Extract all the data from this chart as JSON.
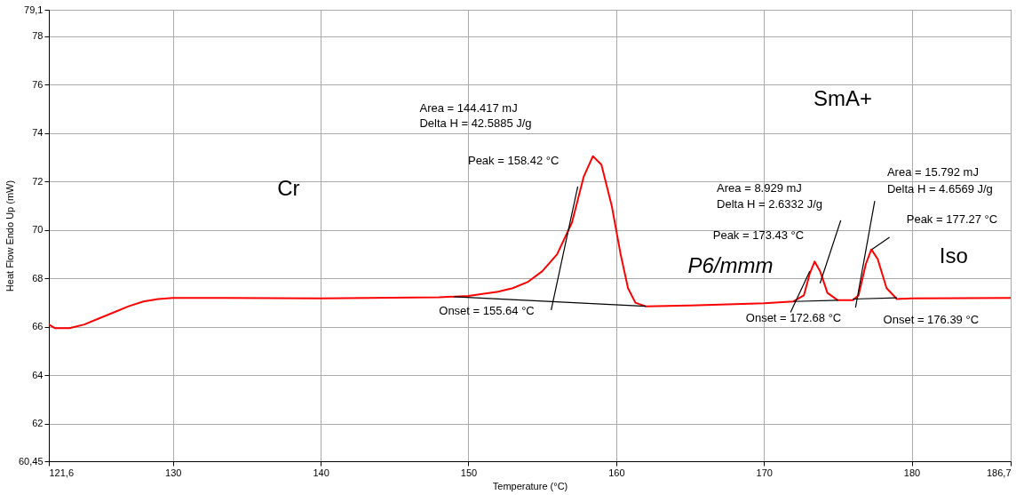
{
  "chart_data": {
    "type": "line",
    "xlabel": "Temperature (°C)",
    "ylabel": "Heat Flow Endo Up (mW)",
    "xlim": [
      121.6,
      186.7
    ],
    "xticks": [
      {
        "value": 121.6,
        "label": "121,6"
      },
      130,
      140,
      150,
      160,
      170,
      180,
      {
        "value": 186.7,
        "label": "186,7"
      }
    ],
    "ylim": [
      60.45,
      79.1
    ],
    "yticks": [
      {
        "value": 60.45,
        "label": "60,45"
      },
      62,
      64,
      66,
      68,
      70,
      72,
      74,
      76,
      78,
      {
        "value": 79.1,
        "label": "79,1"
      }
    ],
    "grid": true,
    "marker": "none",
    "line_style": "solid",
    "series": [
      {
        "color": "#ff0000",
        "x": [
          121.6,
          122,
          123,
          124,
          125,
          126,
          127,
          128,
          129,
          130,
          140,
          148,
          150,
          152,
          153,
          154,
          155,
          156,
          157,
          157.8,
          158.42,
          159,
          159.7,
          160.3,
          160.8,
          161.3,
          162,
          165,
          170,
          172,
          172.7,
          173.1,
          173.43,
          173.8,
          174.3,
          175,
          176,
          176.4,
          176.9,
          177.27,
          177.7,
          178.3,
          179,
          180,
          186.7
        ],
        "values": [
          66.1,
          65.95,
          65.95,
          66.1,
          66.35,
          66.6,
          66.85,
          67.05,
          67.15,
          67.2,
          67.18,
          67.22,
          67.28,
          67.45,
          67.6,
          67.85,
          68.3,
          69.0,
          70.3,
          72.2,
          73.05,
          72.7,
          71.0,
          69.0,
          67.6,
          67.0,
          66.85,
          66.88,
          66.98,
          67.05,
          67.3,
          68.2,
          68.7,
          68.3,
          67.4,
          67.1,
          67.1,
          67.3,
          68.6,
          69.2,
          68.8,
          67.6,
          67.15,
          67.18,
          67.2
        ]
      },
      {
        "color": "#000000",
        "x": [
          149,
          162
        ],
        "values": [
          67.25,
          66.85
        ]
      },
      {
        "color": "#000000",
        "x": [
          155.6,
          157.4
        ],
        "values": [
          66.7,
          71.8
        ]
      },
      {
        "color": "#000000",
        "x": [
          172,
          175
        ],
        "values": [
          67.05,
          67.1
        ]
      },
      {
        "color": "#000000",
        "x": [
          171.8,
          173.1
        ],
        "values": [
          66.6,
          68.3
        ]
      },
      {
        "color": "#000000",
        "x": [
          173.8,
          175.2
        ],
        "values": [
          67.8,
          70.4
        ]
      },
      {
        "color": "#000000",
        "x": [
          176,
          179
        ],
        "values": [
          67.15,
          67.2
        ]
      },
      {
        "color": "#000000",
        "x": [
          176.2,
          177.5
        ],
        "values": [
          66.8,
          71.2
        ]
      },
      {
        "color": "#000000",
        "x": [
          177.3,
          178.5
        ],
        "values": [
          69.2,
          69.7
        ]
      }
    ],
    "annotations": [
      "Cr",
      "P6/mmm",
      "SmA+",
      "Iso",
      "Area = 144.417 mJ",
      "Delta H = 42.5885 J/g",
      "Peak = 158.42 °C",
      "Onset = 155.64 °C",
      "Area = 8.929 mJ",
      "Delta H = 2.6332 J/g",
      "Peak = 173.43 °C",
      "Onset = 172.68 °C",
      "Area = 15.792 mJ",
      "Delta H = 4.6569 J/g",
      "Peak = 177.27 °C",
      "Onset = 176.39 °C"
    ]
  }
}
